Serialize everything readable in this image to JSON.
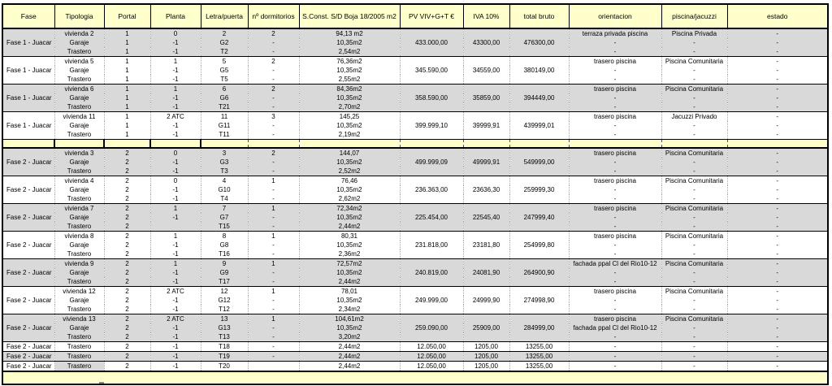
{
  "table": {
    "columns": [
      "Fase",
      "Tipologia",
      "Portal",
      "Planta",
      "Letra/puerta",
      "nº dormitorios",
      "S.Const. S/D Boja 18/2005 m2",
      "PV VIV+G+T  €",
      "IVA 10%",
      "total bruto",
      "orientacion",
      "piscina/jacuzzi",
      "estado"
    ],
    "colors": {
      "header_bg": "#FFFFCC",
      "row_gray": "#D9D9D9",
      "row_white": "#FFFFFF",
      "border": "#000000"
    },
    "sections": [
      {
        "type": "group",
        "bg": "gray",
        "fase": "Fase 1 - Juacar",
        "pv": "433.000,00",
        "iva": "43300,00",
        "total": "476300,00",
        "rows": [
          {
            "tipologia": "vivienda 2",
            "portal": "1",
            "planta": "0",
            "letra": "2",
            "dorm": "2",
            "sconst": "94,13 m2",
            "orientacion": "terraza privada piscina",
            "piscina": "Piscina Privada",
            "estado": "-"
          },
          {
            "tipologia": "Garaje",
            "portal": "1",
            "planta": "-1",
            "letra": "G2",
            "dorm": "-",
            "sconst": "10,35m2",
            "orientacion": "-",
            "piscina": "-",
            "estado": "-"
          },
          {
            "tipologia": "Trastero",
            "portal": "1",
            "planta": "-1",
            "letra": "T2",
            "dorm": "-",
            "sconst": "2,54m2",
            "orientacion": "-",
            "piscina": "-",
            "estado": "-"
          }
        ]
      },
      {
        "type": "group",
        "bg": "white",
        "fase": "Fase 1 - Juacar",
        "pv": "345.590,00",
        "iva": "34559,00",
        "total": "380149,00",
        "rows": [
          {
            "tipologia": "vivienda 5",
            "portal": "1",
            "planta": "1",
            "letra": "5",
            "dorm": "2",
            "sconst": "76,36m2",
            "orientacion": "trasero piscina",
            "piscina": "Piscina Comunitaria",
            "estado": "-"
          },
          {
            "tipologia": "Garaje",
            "portal": "1",
            "planta": "-1",
            "letra": "G5",
            "dorm": "-",
            "sconst": "10,35m2",
            "orientacion": "-",
            "piscina": "-",
            "estado": "-"
          },
          {
            "tipologia": "Trastero",
            "portal": "1",
            "planta": "-1",
            "letra": "T5",
            "dorm": "-",
            "sconst": "2,55m2",
            "orientacion": "-",
            "piscina": "-",
            "estado": "-"
          }
        ]
      },
      {
        "type": "group",
        "bg": "gray",
        "fase": "Fase 1 - Juacar",
        "pv": "358.590,00",
        "iva": "35859,00",
        "total": "394449,00",
        "rows": [
          {
            "tipologia": "vivienda 6",
            "portal": "1",
            "planta": "1",
            "letra": "6",
            "dorm": "2",
            "sconst": "84,36m2",
            "orientacion": "trasero piscina",
            "piscina": "Piscina Comunitaria",
            "estado": "-"
          },
          {
            "tipologia": "Garaje",
            "portal": "1",
            "planta": "-1",
            "letra": "G6",
            "dorm": "-",
            "sconst": "10,35m2",
            "orientacion": "-",
            "piscina": "-",
            "estado": "-"
          },
          {
            "tipologia": "Trastero",
            "portal": "1",
            "planta": "-1",
            "letra": "T21",
            "dorm": "-",
            "sconst": "2,70m2",
            "orientacion": "-",
            "piscina": "-",
            "estado": "-"
          }
        ]
      },
      {
        "type": "group",
        "bg": "white",
        "fase": "Fase 1 - Juacar",
        "pv": "399.999,10",
        "iva": "39999,91",
        "total": "439999,01",
        "rows": [
          {
            "tipologia": "vivienda 11",
            "portal": "1",
            "planta": "2 ATC",
            "letra": "11",
            "dorm": "3",
            "sconst": "145,25",
            "orientacion": "trasero piscina",
            "piscina": "Jacuzzi Privado",
            "estado": "-"
          },
          {
            "tipologia": "Garaje",
            "portal": "1",
            "planta": "-1",
            "letra": "G11",
            "dorm": "-",
            "sconst": "10,35m2",
            "orientacion": "-",
            "piscina": "-",
            "estado": "-"
          },
          {
            "tipologia": "Trastero",
            "portal": "1",
            "planta": "-1",
            "letra": "T11",
            "dorm": "-",
            "sconst": "2,19m2",
            "orientacion": "-",
            "piscina": "-",
            "estado": "-"
          }
        ]
      },
      {
        "type": "separator"
      },
      {
        "type": "group",
        "bg": "gray",
        "fase": "Fase 2 - Juacar",
        "pv": "499.999,09",
        "iva": "49999,91",
        "total": "549999,00",
        "rows": [
          {
            "tipologia": "vivienda 3",
            "portal": "2",
            "planta": "0",
            "letra": "3",
            "dorm": "2",
            "sconst": "144,07",
            "orientacion": "trasero piscina",
            "piscina": "Piscina Comunitaria",
            "estado": "-"
          },
          {
            "tipologia": "Garaje",
            "portal": "2",
            "planta": "-1",
            "letra": "G3",
            "dorm": "-",
            "sconst": "10,35m2",
            "orientacion": "-",
            "piscina": "-",
            "estado": "-"
          },
          {
            "tipologia": "Trastero",
            "portal": "2",
            "planta": "-1",
            "letra": "T3",
            "dorm": "-",
            "sconst": "2,52m2",
            "orientacion": "-",
            "piscina": "-",
            "estado": "-"
          }
        ]
      },
      {
        "type": "group",
        "bg": "white",
        "fase": "Fase 2 - Juacar",
        "pv": "236.363,00",
        "iva": "23636,30",
        "total": "259999,30",
        "rows": [
          {
            "tipologia": "vivienda 4",
            "portal": "2",
            "planta": "0",
            "letra": "4",
            "dorm": "1",
            "sconst": "76,46",
            "orientacion": "trasero piscina",
            "piscina": "Piscina Comunitaria",
            "estado": "-"
          },
          {
            "tipologia": "Garaje",
            "portal": "2",
            "planta": "-1",
            "letra": "G10",
            "dorm": "-",
            "sconst": "10,35m2",
            "orientacion": "-",
            "piscina": "-",
            "estado": "-"
          },
          {
            "tipologia": "Trastero",
            "portal": "2",
            "planta": "-1",
            "letra": "T4",
            "dorm": "-",
            "sconst": "2,62m2",
            "orientacion": "-",
            "piscina": "-",
            "estado": "-"
          }
        ]
      },
      {
        "type": "group",
        "bg": "gray",
        "fase": "Fase 2 - Juacar",
        "pv": "225.454,00",
        "iva": "22545,40",
        "total": "247999,40",
        "rows": [
          {
            "tipologia": "vivienda 7",
            "portal": "2",
            "planta": "1",
            "letra": "7",
            "dorm": "1",
            "sconst": "72,34m2",
            "orientacion": "trasero piscina",
            "piscina": "Piscina Comunitaria",
            "estado": "-"
          },
          {
            "tipologia": "Garaje",
            "portal": "2",
            "planta": "-1",
            "letra": "G7",
            "dorm": "-",
            "sconst": "10,35m2",
            "orientacion": "-",
            "piscina": "-",
            "estado": "-"
          },
          {
            "tipologia": "Trastero",
            "portal": "2",
            "planta": "",
            "letra": "T15",
            "dorm": "-",
            "sconst": "2,44m2",
            "orientacion": "-",
            "piscina": "-",
            "estado": "-"
          }
        ]
      },
      {
        "type": "group",
        "bg": "white",
        "fase": "Fase 2 - Juacar",
        "pv": "231.818,00",
        "iva": "23181,80",
        "total": "254999,80",
        "rows": [
          {
            "tipologia": "vivienda 8",
            "portal": "2",
            "planta": "1",
            "letra": "8",
            "dorm": "1",
            "sconst": "80,31",
            "orientacion": "trasero piscina",
            "piscina": "Piscina Comunitaria",
            "estado": "-"
          },
          {
            "tipologia": "Garaje",
            "portal": "2",
            "planta": "-1",
            "letra": "G8",
            "dorm": "-",
            "sconst": "10,35m2",
            "orientacion": "-",
            "piscina": "-",
            "estado": "-"
          },
          {
            "tipologia": "Trastero",
            "portal": "2",
            "planta": "-1",
            "letra": "T16",
            "dorm": "-",
            "sconst": "2,36m2",
            "orientacion": "-",
            "piscina": "-",
            "estado": "-"
          }
        ]
      },
      {
        "type": "group",
        "bg": "gray",
        "fase": "Fase 2 - Juacar",
        "pv": "240.819,00",
        "iva": "24081,90",
        "total": "264900,90",
        "rows": [
          {
            "tipologia": "vivienda 9",
            "portal": "2",
            "planta": "1",
            "letra": "9",
            "dorm": "1",
            "sconst": "72,57m2",
            "orientacion": "fachada ppal Cl del Rio10-12",
            "piscina": "Piscina Comunitaria",
            "estado": "-"
          },
          {
            "tipologia": "Garaje",
            "portal": "2",
            "planta": "-1",
            "letra": "G9",
            "dorm": "-",
            "sconst": "10,35m2",
            "orientacion": "-",
            "piscina": "-",
            "estado": "-"
          },
          {
            "tipologia": "Trastero",
            "portal": "2",
            "planta": "-1",
            "letra": "T17",
            "dorm": "-",
            "sconst": "2,44m2",
            "orientacion": "-",
            "piscina": "-",
            "estado": "-"
          }
        ]
      },
      {
        "type": "group",
        "bg": "white",
        "fase": "Fase 2 - Juacar",
        "pv": "249.999,00",
        "iva": "24999,90",
        "total": "274998,90",
        "rows": [
          {
            "tipologia": "vivienda 12",
            "portal": "2",
            "planta": "2 ATC",
            "letra": "12",
            "dorm": "1",
            "sconst": "78,01",
            "orientacion": "trasero piscina",
            "piscina": "Piscina Comunitaria",
            "estado": "-"
          },
          {
            "tipologia": "Garaje",
            "portal": "2",
            "planta": "-1",
            "letra": "G12",
            "dorm": "-",
            "sconst": "10,35m2",
            "orientacion": "-",
            "piscina": "-",
            "estado": "-"
          },
          {
            "tipologia": "Trastero",
            "portal": "2",
            "planta": "-1",
            "letra": "T12",
            "dorm": "-",
            "sconst": "2,34m2",
            "orientacion": "-",
            "piscina": "-",
            "estado": "-"
          }
        ]
      },
      {
        "type": "group",
        "bg": "gray",
        "fase": "Fase 2 - Juacar",
        "pv": "259.090,00",
        "iva": "25909,00",
        "total": "284999,00",
        "rows": [
          {
            "tipologia": "vivienda 13",
            "portal": "2",
            "planta": "2 ATC",
            "letra": "13",
            "dorm": "1",
            "sconst": "104,61m2",
            "orientacion": "trasero piscina",
            "piscina": "Piscina Comunitaria",
            "estado": "-"
          },
          {
            "tipologia": "Garaje",
            "portal": "2",
            "planta": "-1",
            "letra": "G13",
            "dorm": "-",
            "sconst": "10,35m2",
            "orientacion": "fachada ppal Cl del Rio10-12",
            "piscina": "-",
            "estado": "-"
          },
          {
            "tipologia": "Trastero",
            "portal": "2",
            "planta": "-1",
            "letra": "T13",
            "dorm": "-",
            "sconst": "3,20m2",
            "orientacion": "-",
            "piscina": "-",
            "estado": "-"
          }
        ]
      },
      {
        "type": "single",
        "bg": "white",
        "fase": "Fase 2 - Juacar",
        "tipologia": "Trastero",
        "portal": "2",
        "planta": "-1",
        "letra": "T18",
        "dorm": "-",
        "sconst": "2,44m2",
        "pv": "12.050,00",
        "iva": "1205,00",
        "total": "13255,00",
        "orientacion": "-",
        "piscina": "-",
        "estado": "-"
      },
      {
        "type": "single",
        "bg": "gray",
        "fase": "Fase 2 - Juacar",
        "tipologia": "Trastero",
        "portal": "2",
        "planta": "-1",
        "letra": "T19",
        "dorm": "-",
        "sconst": "2,44m2",
        "pv": "12.050,00",
        "iva": "1205,00",
        "total": "13255,00",
        "orientacion": "-",
        "piscina": "-",
        "estado": "-"
      },
      {
        "type": "single",
        "bg": "white",
        "tip_bg": "gray",
        "fase": "Fase 2 - Juacar",
        "tipologia": "Trastero",
        "portal": "2",
        "planta": "-1",
        "letra": "T20",
        "dorm": "",
        "sconst": "2,44m2",
        "pv": "12.050,00",
        "iva": "1205,00",
        "total": "13255,00",
        "orientacion": "-",
        "piscina": "-",
        "estado": "-"
      },
      {
        "type": "band"
      }
    ]
  }
}
